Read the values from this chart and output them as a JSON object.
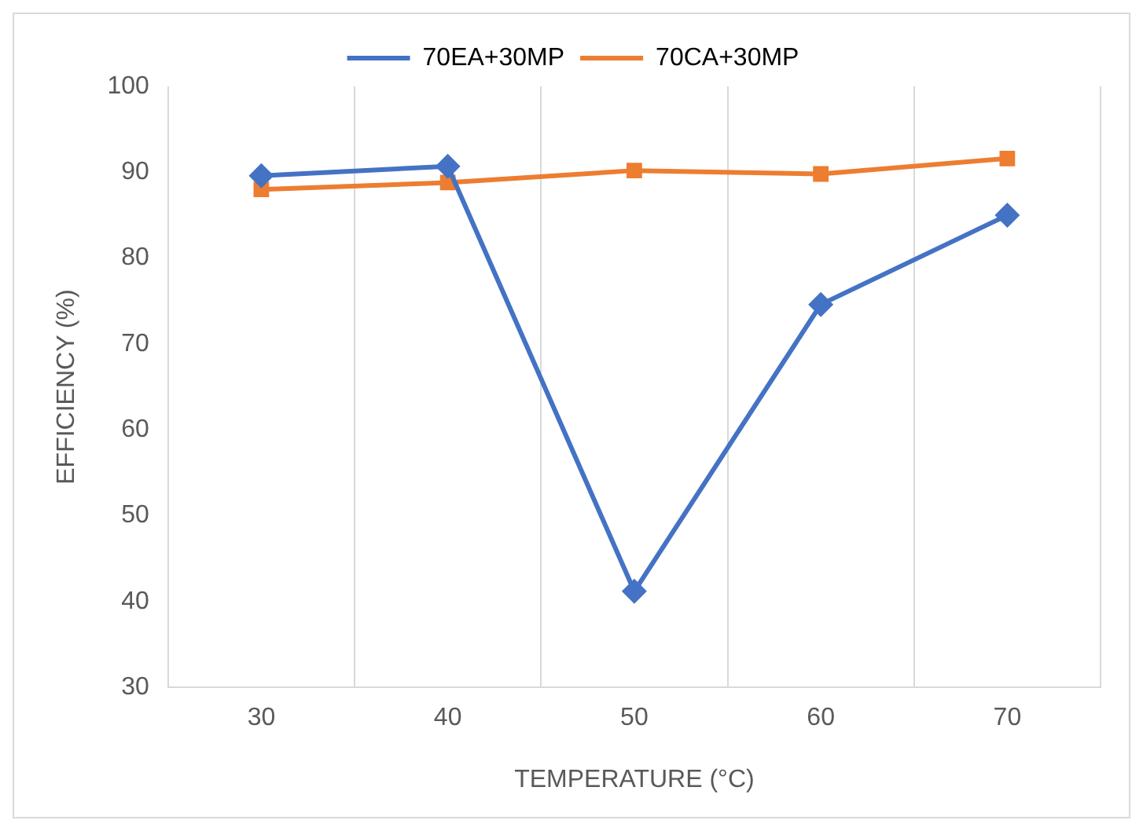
{
  "chart_data": {
    "type": "line",
    "xlabel": "TEMPERATURE (°C)",
    "ylabel": "EFFICIENCY (%)",
    "categories": [
      "30",
      "40",
      "50",
      "60",
      "70"
    ],
    "series": [
      {
        "name": "70EA+30MP",
        "color": "#4472c4",
        "marker": "diamond",
        "values": [
          89.6,
          90.7,
          41.2,
          74.6,
          85.0
        ]
      },
      {
        "name": "70CA+30MP",
        "color": "#ed7d31",
        "marker": "square",
        "values": [
          88.0,
          88.8,
          90.2,
          89.8,
          91.6
        ]
      }
    ],
    "ylim": [
      30,
      100
    ],
    "yticks": [
      30,
      40,
      50,
      60,
      70,
      80,
      90,
      100
    ],
    "grid": "x",
    "legend": "top",
    "line_style": "solid"
  }
}
